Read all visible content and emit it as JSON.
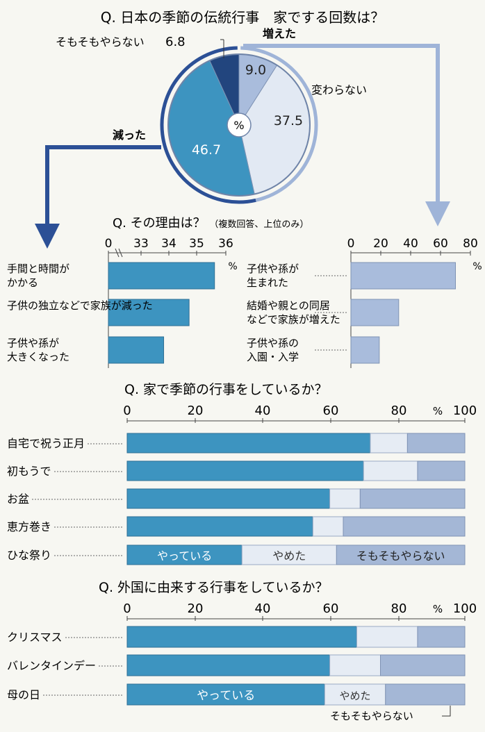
{
  "colors": {
    "dark": "#22457e",
    "mid": "#3d94c0",
    "light": "#e2e9f3",
    "pale": "#a9bcdc",
    "stop": "#e6ecf4",
    "never": "#a4b7d6",
    "arrow_dark": "#2c5096",
    "arrow_light": "#9fb4d8",
    "background": "#f7f7f2"
  },
  "chart_data": [
    {
      "type": "pie",
      "title": "Q. 日本の季節の伝統行事　家でする回数は？",
      "center_label": "%",
      "slices": [
        {
          "label": "増えた",
          "value": 9.0,
          "value_text": "9.0"
        },
        {
          "label": "変わらない",
          "value": 37.5,
          "value_text": "37.5"
        },
        {
          "label": "減った",
          "value": 46.7,
          "value_text": "46.7"
        },
        {
          "label": "そもそもやらない",
          "value": 6.8,
          "value_text": "6.8"
        }
      ]
    },
    {
      "type": "bar",
      "title": "Q. その理由は？",
      "subtitle": "（複数回答、上位のみ）",
      "parent": "減った",
      "unit": "%",
      "ticks": [
        "0",
        "33",
        "34",
        "35",
        "36"
      ],
      "axis_break": true,
      "categories": [
        "手間と時間が\nかかる",
        "子供の独立などで家族が減った",
        "子供や孫が\n大きくなった"
      ],
      "values": [
        35.6,
        34.7,
        33.8
      ]
    },
    {
      "type": "bar",
      "parent": "増えた",
      "unit": "%",
      "ticks": [
        "0",
        "20",
        "40",
        "60",
        "80"
      ],
      "xlim": [
        0,
        80
      ],
      "categories": [
        "子供や孫が\n生まれた",
        "結婚や親との同居\nなどで家族が増えた",
        "子供や孫の\n入園・入学"
      ],
      "values": [
        70,
        32,
        19
      ]
    },
    {
      "type": "bar",
      "stacked": true,
      "title": "Q. 家で季節の行事をしているか？",
      "unit": "%",
      "ticks": [
        "0",
        "20",
        "40",
        "60",
        "80",
        "100"
      ],
      "xlim": [
        0,
        100
      ],
      "categories": [
        "自宅で祝う正月",
        "初もうで",
        "お盆",
        "恵方巻き",
        "ひな祭り"
      ],
      "series": [
        {
          "name": "やっている",
          "values": [
            72,
            70,
            60,
            55,
            34
          ]
        },
        {
          "name": "やめた",
          "values": [
            11,
            16,
            9,
            9,
            28
          ]
        },
        {
          "name": "そもそもやらない",
          "values": [
            17,
            14,
            31,
            36,
            38
          ]
        }
      ]
    },
    {
      "type": "bar",
      "stacked": true,
      "title": "Q. 外国に由来する行事をしているか？",
      "unit": "%",
      "ticks": [
        "0",
        "20",
        "40",
        "60",
        "80",
        "100"
      ],
      "xlim": [
        0,
        100
      ],
      "categories": [
        "クリスマス",
        "バレンタインデー",
        "母の日"
      ],
      "series": [
        {
          "name": "やっている",
          "values": [
            68,
            60,
            58.5
          ]
        },
        {
          "name": "やめた",
          "values": [
            18,
            15,
            18
          ]
        },
        {
          "name": "そもそもやらない",
          "values": [
            14,
            25,
            23.5
          ]
        }
      ]
    }
  ]
}
